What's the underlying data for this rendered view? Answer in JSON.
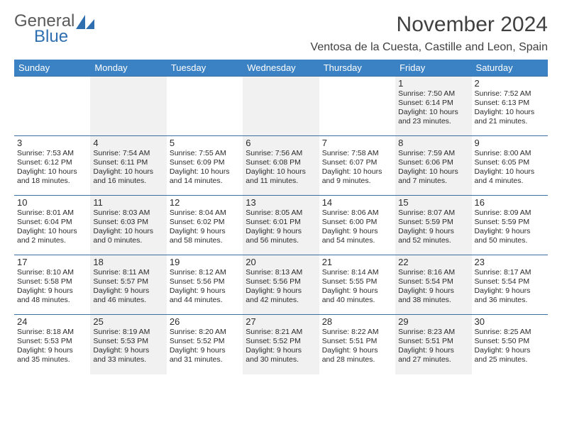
{
  "brand": {
    "general": "General",
    "blue": "Blue"
  },
  "title": "November 2024",
  "location": "Ventosa de la Cuesta, Castille and Leon, Spain",
  "colors": {
    "header_bg": "#3b82c4",
    "header_fg": "#ffffff",
    "row_border": "#3b6fa0",
    "alt_cell_bg": "#f1f1f1",
    "brand_blue": "#2f6fb0",
    "text": "#333333"
  },
  "weekdays": [
    "Sunday",
    "Monday",
    "Tuesday",
    "Wednesday",
    "Thursday",
    "Friday",
    "Saturday"
  ],
  "grid": {
    "rows": 5,
    "cols": 7,
    "first_weekday_index": 5
  },
  "days": [
    {
      "n": "1",
      "sunrise": "Sunrise: 7:50 AM",
      "sunset": "Sunset: 6:14 PM",
      "day1": "Daylight: 10 hours",
      "day2": "and 23 minutes."
    },
    {
      "n": "2",
      "sunrise": "Sunrise: 7:52 AM",
      "sunset": "Sunset: 6:13 PM",
      "day1": "Daylight: 10 hours",
      "day2": "and 21 minutes."
    },
    {
      "n": "3",
      "sunrise": "Sunrise: 7:53 AM",
      "sunset": "Sunset: 6:12 PM",
      "day1": "Daylight: 10 hours",
      "day2": "and 18 minutes."
    },
    {
      "n": "4",
      "sunrise": "Sunrise: 7:54 AM",
      "sunset": "Sunset: 6:11 PM",
      "day1": "Daylight: 10 hours",
      "day2": "and 16 minutes."
    },
    {
      "n": "5",
      "sunrise": "Sunrise: 7:55 AM",
      "sunset": "Sunset: 6:09 PM",
      "day1": "Daylight: 10 hours",
      "day2": "and 14 minutes."
    },
    {
      "n": "6",
      "sunrise": "Sunrise: 7:56 AM",
      "sunset": "Sunset: 6:08 PM",
      "day1": "Daylight: 10 hours",
      "day2": "and 11 minutes."
    },
    {
      "n": "7",
      "sunrise": "Sunrise: 7:58 AM",
      "sunset": "Sunset: 6:07 PM",
      "day1": "Daylight: 10 hours",
      "day2": "and 9 minutes."
    },
    {
      "n": "8",
      "sunrise": "Sunrise: 7:59 AM",
      "sunset": "Sunset: 6:06 PM",
      "day1": "Daylight: 10 hours",
      "day2": "and 7 minutes."
    },
    {
      "n": "9",
      "sunrise": "Sunrise: 8:00 AM",
      "sunset": "Sunset: 6:05 PM",
      "day1": "Daylight: 10 hours",
      "day2": "and 4 minutes."
    },
    {
      "n": "10",
      "sunrise": "Sunrise: 8:01 AM",
      "sunset": "Sunset: 6:04 PM",
      "day1": "Daylight: 10 hours",
      "day2": "and 2 minutes."
    },
    {
      "n": "11",
      "sunrise": "Sunrise: 8:03 AM",
      "sunset": "Sunset: 6:03 PM",
      "day1": "Daylight: 10 hours",
      "day2": "and 0 minutes."
    },
    {
      "n": "12",
      "sunrise": "Sunrise: 8:04 AM",
      "sunset": "Sunset: 6:02 PM",
      "day1": "Daylight: 9 hours",
      "day2": "and 58 minutes."
    },
    {
      "n": "13",
      "sunrise": "Sunrise: 8:05 AM",
      "sunset": "Sunset: 6:01 PM",
      "day1": "Daylight: 9 hours",
      "day2": "and 56 minutes."
    },
    {
      "n": "14",
      "sunrise": "Sunrise: 8:06 AM",
      "sunset": "Sunset: 6:00 PM",
      "day1": "Daylight: 9 hours",
      "day2": "and 54 minutes."
    },
    {
      "n": "15",
      "sunrise": "Sunrise: 8:07 AM",
      "sunset": "Sunset: 5:59 PM",
      "day1": "Daylight: 9 hours",
      "day2": "and 52 minutes."
    },
    {
      "n": "16",
      "sunrise": "Sunrise: 8:09 AM",
      "sunset": "Sunset: 5:59 PM",
      "day1": "Daylight: 9 hours",
      "day2": "and 50 minutes."
    },
    {
      "n": "17",
      "sunrise": "Sunrise: 8:10 AM",
      "sunset": "Sunset: 5:58 PM",
      "day1": "Daylight: 9 hours",
      "day2": "and 48 minutes."
    },
    {
      "n": "18",
      "sunrise": "Sunrise: 8:11 AM",
      "sunset": "Sunset: 5:57 PM",
      "day1": "Daylight: 9 hours",
      "day2": "and 46 minutes."
    },
    {
      "n": "19",
      "sunrise": "Sunrise: 8:12 AM",
      "sunset": "Sunset: 5:56 PM",
      "day1": "Daylight: 9 hours",
      "day2": "and 44 minutes."
    },
    {
      "n": "20",
      "sunrise": "Sunrise: 8:13 AM",
      "sunset": "Sunset: 5:56 PM",
      "day1": "Daylight: 9 hours",
      "day2": "and 42 minutes."
    },
    {
      "n": "21",
      "sunrise": "Sunrise: 8:14 AM",
      "sunset": "Sunset: 5:55 PM",
      "day1": "Daylight: 9 hours",
      "day2": "and 40 minutes."
    },
    {
      "n": "22",
      "sunrise": "Sunrise: 8:16 AM",
      "sunset": "Sunset: 5:54 PM",
      "day1": "Daylight: 9 hours",
      "day2": "and 38 minutes."
    },
    {
      "n": "23",
      "sunrise": "Sunrise: 8:17 AM",
      "sunset": "Sunset: 5:54 PM",
      "day1": "Daylight: 9 hours",
      "day2": "and 36 minutes."
    },
    {
      "n": "24",
      "sunrise": "Sunrise: 8:18 AM",
      "sunset": "Sunset: 5:53 PM",
      "day1": "Daylight: 9 hours",
      "day2": "and 35 minutes."
    },
    {
      "n": "25",
      "sunrise": "Sunrise: 8:19 AM",
      "sunset": "Sunset: 5:53 PM",
      "day1": "Daylight: 9 hours",
      "day2": "and 33 minutes."
    },
    {
      "n": "26",
      "sunrise": "Sunrise: 8:20 AM",
      "sunset": "Sunset: 5:52 PM",
      "day1": "Daylight: 9 hours",
      "day2": "and 31 minutes."
    },
    {
      "n": "27",
      "sunrise": "Sunrise: 8:21 AM",
      "sunset": "Sunset: 5:52 PM",
      "day1": "Daylight: 9 hours",
      "day2": "and 30 minutes."
    },
    {
      "n": "28",
      "sunrise": "Sunrise: 8:22 AM",
      "sunset": "Sunset: 5:51 PM",
      "day1": "Daylight: 9 hours",
      "day2": "and 28 minutes."
    },
    {
      "n": "29",
      "sunrise": "Sunrise: 8:23 AM",
      "sunset": "Sunset: 5:51 PM",
      "day1": "Daylight: 9 hours",
      "day2": "and 27 minutes."
    },
    {
      "n": "30",
      "sunrise": "Sunrise: 8:25 AM",
      "sunset": "Sunset: 5:50 PM",
      "day1": "Daylight: 9 hours",
      "day2": "and 25 minutes."
    }
  ]
}
